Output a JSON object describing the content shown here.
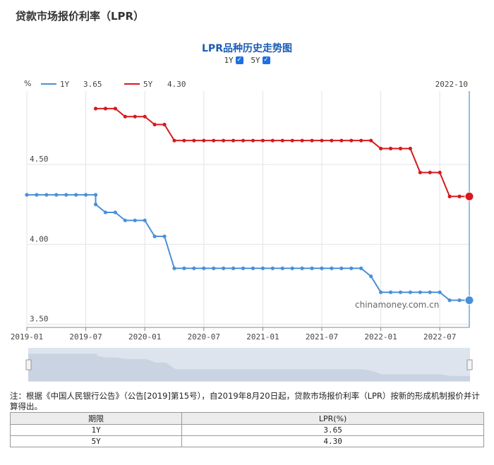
{
  "page_title": "贷款市场报价利率（LPR）",
  "chart_title": "LPR品种历史走势图",
  "toggles": [
    {
      "label": "1Y",
      "checked": true
    },
    {
      "label": "5Y",
      "checked": true
    }
  ],
  "watermark": "chinamoney.com.cn",
  "note": "注：根据《中国人民银行公告》（公告[2019]第15号），自2019年8月20日起，贷款市场报价利率（LPR）按新的形成机制报价并计算得出。",
  "table": {
    "headers": [
      "期限",
      "LPR(%)"
    ],
    "rows": [
      [
        "1Y",
        "3.65"
      ],
      [
        "5Y",
        "4.30"
      ]
    ]
  },
  "chart_data": {
    "type": "line",
    "y_unit_label": "%",
    "current_date_label": "2022-10",
    "ylim": [
      3.48,
      4.96
    ],
    "y_ticks": [
      "3.50",
      "4.00",
      "4.50"
    ],
    "x_tick_labels": [
      "2019-01",
      "2019-07",
      "2020-01",
      "2020-07",
      "2021-01",
      "2021-07",
      "2022-01",
      "2022-07"
    ],
    "x_tick_dates": [
      "2019-01",
      "2019-07",
      "2020-01",
      "2020-07",
      "2021-01",
      "2021-07",
      "2022-01",
      "2022-07"
    ],
    "x_range": [
      "2019-01",
      "2022-10"
    ],
    "grid": true,
    "legend_position": "top-left",
    "series": [
      {
        "name": "1Y",
        "latest": "3.65",
        "color": "#4a90d9",
        "points": [
          [
            "2019-01",
            4.31
          ],
          [
            "2019-02",
            4.31
          ],
          [
            "2019-03",
            4.31
          ],
          [
            "2019-04",
            4.31
          ],
          [
            "2019-05",
            4.31
          ],
          [
            "2019-06",
            4.31
          ],
          [
            "2019-07",
            4.31
          ],
          [
            "2019-08",
            4.31
          ],
          [
            "2019-08",
            4.25
          ],
          [
            "2019-09",
            4.2
          ],
          [
            "2019-10",
            4.2
          ],
          [
            "2019-11",
            4.15
          ],
          [
            "2019-12",
            4.15
          ],
          [
            "2020-01",
            4.15
          ],
          [
            "2020-02",
            4.05
          ],
          [
            "2020-03",
            4.05
          ],
          [
            "2020-04",
            3.85
          ],
          [
            "2020-05",
            3.85
          ],
          [
            "2020-06",
            3.85
          ],
          [
            "2020-07",
            3.85
          ],
          [
            "2020-08",
            3.85
          ],
          [
            "2020-09",
            3.85
          ],
          [
            "2020-10",
            3.85
          ],
          [
            "2020-11",
            3.85
          ],
          [
            "2020-12",
            3.85
          ],
          [
            "2021-01",
            3.85
          ],
          [
            "2021-02",
            3.85
          ],
          [
            "2021-03",
            3.85
          ],
          [
            "2021-04",
            3.85
          ],
          [
            "2021-05",
            3.85
          ],
          [
            "2021-06",
            3.85
          ],
          [
            "2021-07",
            3.85
          ],
          [
            "2021-08",
            3.85
          ],
          [
            "2021-09",
            3.85
          ],
          [
            "2021-10",
            3.85
          ],
          [
            "2021-11",
            3.85
          ],
          [
            "2021-12",
            3.8
          ],
          [
            "2022-01",
            3.7
          ],
          [
            "2022-02",
            3.7
          ],
          [
            "2022-03",
            3.7
          ],
          [
            "2022-04",
            3.7
          ],
          [
            "2022-05",
            3.7
          ],
          [
            "2022-06",
            3.7
          ],
          [
            "2022-07",
            3.7
          ],
          [
            "2022-08",
            3.65
          ],
          [
            "2022-09",
            3.65
          ],
          [
            "2022-10",
            3.65
          ]
        ]
      },
      {
        "name": "5Y",
        "latest": "4.30",
        "color": "#d7191c",
        "points": [
          [
            "2019-08",
            4.85
          ],
          [
            "2019-09",
            4.85
          ],
          [
            "2019-10",
            4.85
          ],
          [
            "2019-11",
            4.8
          ],
          [
            "2019-12",
            4.8
          ],
          [
            "2020-01",
            4.8
          ],
          [
            "2020-02",
            4.75
          ],
          [
            "2020-03",
            4.75
          ],
          [
            "2020-04",
            4.65
          ],
          [
            "2020-05",
            4.65
          ],
          [
            "2020-06",
            4.65
          ],
          [
            "2020-07",
            4.65
          ],
          [
            "2020-08",
            4.65
          ],
          [
            "2020-09",
            4.65
          ],
          [
            "2020-10",
            4.65
          ],
          [
            "2020-11",
            4.65
          ],
          [
            "2020-12",
            4.65
          ],
          [
            "2021-01",
            4.65
          ],
          [
            "2021-02",
            4.65
          ],
          [
            "2021-03",
            4.65
          ],
          [
            "2021-04",
            4.65
          ],
          [
            "2021-05",
            4.65
          ],
          [
            "2021-06",
            4.65
          ],
          [
            "2021-07",
            4.65
          ],
          [
            "2021-08",
            4.65
          ],
          [
            "2021-09",
            4.65
          ],
          [
            "2021-10",
            4.65
          ],
          [
            "2021-11",
            4.65
          ],
          [
            "2021-12",
            4.65
          ],
          [
            "2022-01",
            4.6
          ],
          [
            "2022-02",
            4.6
          ],
          [
            "2022-03",
            4.6
          ],
          [
            "2022-04",
            4.6
          ],
          [
            "2022-05",
            4.45
          ],
          [
            "2022-06",
            4.45
          ],
          [
            "2022-07",
            4.45
          ],
          [
            "2022-08",
            4.3
          ],
          [
            "2022-09",
            4.3
          ],
          [
            "2022-10",
            4.3
          ]
        ]
      }
    ]
  }
}
